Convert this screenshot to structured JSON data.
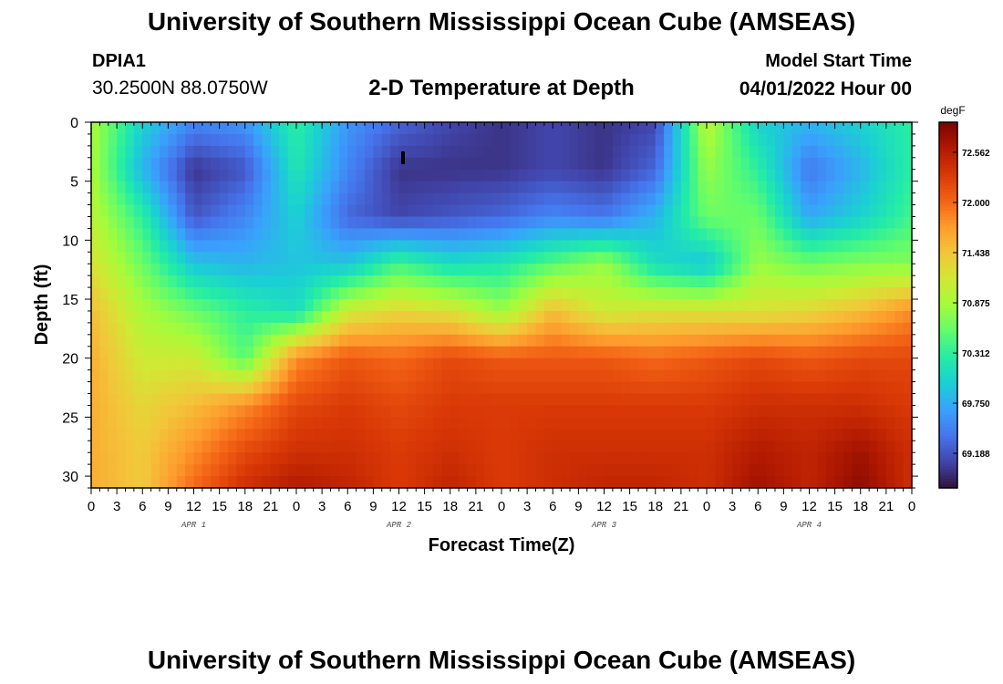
{
  "header": {
    "title": "University of Southern Mississippi Ocean Cube (AMSEAS)",
    "station": "DPIA1",
    "coords": "30.2500N  88.0750W",
    "subtitle": "2-D Temperature at Depth",
    "model_start_label": "Model Start Time",
    "model_start_value": "04/01/2022 Hour 00"
  },
  "footer": {
    "title": "University of Southern Mississippi Ocean Cube (AMSEAS)"
  },
  "colors": {
    "colormap": [
      "#30123b",
      "#4145ab",
      "#4675ed",
      "#39a2fc",
      "#1bcfd4",
      "#24eca6",
      "#61fc6c",
      "#a4fc3b",
      "#d1e834",
      "#f3c63a",
      "#fe9b2d",
      "#f36315",
      "#d93806",
      "#b11901",
      "#7a0402"
    ]
  },
  "chart_data": {
    "type": "heatmap",
    "title": "2-D Temperature at Depth",
    "xlabel": "Forecast Time(Z)",
    "ylabel": "Depth (ft)",
    "x_ticks": [
      "0",
      "3",
      "6",
      "9",
      "12",
      "15",
      "18",
      "21",
      "0",
      "3",
      "6",
      "9",
      "12",
      "15",
      "18",
      "21",
      "0",
      "3",
      "6",
      "9",
      "12",
      "15",
      "18",
      "21",
      "0",
      "3",
      "6",
      "9",
      "12",
      "15",
      "18",
      "21",
      "0"
    ],
    "x_range_hours": [
      0,
      96
    ],
    "date_labels": [
      {
        "label": "APR 1",
        "hour": 12
      },
      {
        "label": "APR 2",
        "hour": 36
      },
      {
        "label": "APR 3",
        "hour": 60
      },
      {
        "label": "APR 4",
        "hour": 84
      }
    ],
    "y_ticks": [
      0,
      5,
      10,
      15,
      20,
      25,
      30
    ],
    "ylim": [
      0,
      31
    ],
    "y_inverted": true,
    "colorbar": {
      "unit": "degF",
      "labels": [
        "72.562",
        "72.000",
        "71.438",
        "70.875",
        "70.312",
        "69.750",
        "69.188"
      ],
      "range": [
        68.8,
        72.9
      ]
    },
    "depths_ft": [
      0,
      4,
      8,
      12,
      16,
      20,
      24,
      28,
      31
    ],
    "hours": [
      0,
      6,
      12,
      18,
      24,
      30,
      36,
      42,
      48,
      54,
      60,
      66,
      72,
      78,
      84,
      90,
      96
    ],
    "values": [
      [
        70.9,
        70.0,
        69.5,
        69.6,
        70.3,
        69.6,
        69.3,
        69.1,
        69.0,
        69.1,
        69.0,
        69.1,
        71.0,
        70.0,
        69.8,
        70.0,
        70.3
      ],
      [
        70.9,
        69.8,
        69.0,
        69.2,
        70.2,
        69.5,
        69.0,
        69.0,
        69.0,
        69.1,
        69.0,
        69.3,
        70.8,
        70.3,
        69.4,
        69.8,
        70.3
      ],
      [
        71.0,
        70.3,
        69.2,
        69.5,
        70.0,
        69.3,
        69.1,
        69.2,
        69.3,
        69.5,
        69.4,
        69.8,
        70.6,
        70.6,
        69.7,
        70.0,
        70.4
      ],
      [
        71.2,
        70.6,
        69.9,
        69.8,
        69.9,
        69.9,
        70.4,
        70.1,
        70.2,
        70.5,
        70.8,
        70.1,
        69.9,
        70.8,
        70.6,
        70.7,
        70.7
      ],
      [
        71.5,
        70.9,
        70.6,
        70.3,
        70.1,
        71.1,
        71.3,
        71.2,
        70.8,
        71.5,
        71.1,
        71.2,
        71.2,
        71.2,
        71.3,
        71.5,
        71.8
      ],
      [
        71.6,
        71.1,
        71.1,
        70.5,
        71.8,
        72.1,
        72.0,
        72.2,
        72.1,
        72.1,
        72.1,
        72.0,
        72.1,
        72.2,
        72.1,
        72.2,
        72.2
      ],
      [
        71.6,
        71.3,
        71.5,
        71.8,
        72.2,
        72.3,
        72.2,
        72.3,
        72.3,
        72.3,
        72.3,
        72.3,
        72.3,
        72.4,
        72.4,
        72.4,
        72.3
      ],
      [
        71.6,
        71.4,
        71.8,
        72.2,
        72.4,
        72.4,
        72.3,
        72.4,
        72.3,
        72.4,
        72.4,
        72.4,
        72.4,
        72.6,
        72.5,
        72.7,
        72.4
      ],
      [
        71.6,
        71.4,
        72.0,
        72.4,
        72.6,
        72.5,
        72.3,
        72.5,
        72.3,
        72.4,
        72.5,
        72.5,
        72.4,
        72.7,
        72.5,
        72.8,
        72.4
      ]
    ]
  }
}
